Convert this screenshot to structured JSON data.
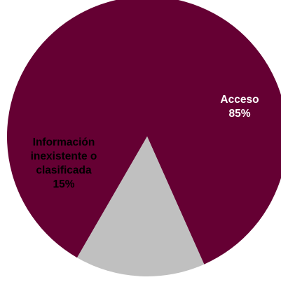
{
  "chart_data": {
    "type": "pie",
    "title": "",
    "slices": [
      {
        "label_lines": [
          "Acceso",
          "85%"
        ],
        "name": "Acceso",
        "value": 85,
        "color": "#650033",
        "text_color": "#ffffff"
      },
      {
        "label_lines": [
          "Información",
          "inexistente o",
          "clasificada",
          "15%"
        ],
        "name": "Información inexistente o clasificada",
        "value": 15,
        "color": "#c0c0c0",
        "text_color": "#000000"
      }
    ]
  }
}
